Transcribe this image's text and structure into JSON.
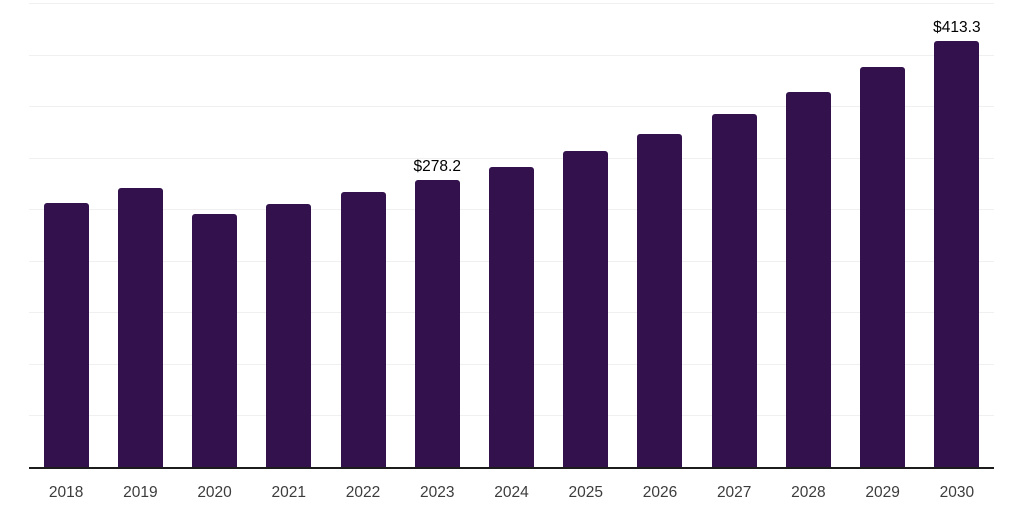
{
  "chart_data": {
    "type": "bar",
    "title": "",
    "xlabel": "",
    "ylabel": "",
    "categories": [
      "2018",
      "2019",
      "2020",
      "2021",
      "2022",
      "2023",
      "2024",
      "2025",
      "2026",
      "2027",
      "2028",
      "2029",
      "2030"
    ],
    "values": [
      256.0,
      270.5,
      245.5,
      255.0,
      266.5,
      278.2,
      291.3,
      306.8,
      322.9,
      342.9,
      364.2,
      388.1,
      413.3
    ],
    "data_labels": [
      "",
      "",
      "",
      "",
      "",
      "$278.2",
      "",
      "",
      "",
      "",
      "",
      "",
      "$413.3"
    ],
    "ylim": [
      0,
      453
    ],
    "gridline_values": [
      50,
      100,
      150,
      200,
      250,
      300,
      350,
      400,
      450
    ],
    "grid": "horizontal",
    "legend_position": "none",
    "colors": {
      "bar": "#33114d",
      "gridline": "#f0f0f0",
      "axis_line": "#1c1c1c",
      "tick_label": "#3c3c3c",
      "data_label": "#000000",
      "background": "#ffffff"
    }
  }
}
